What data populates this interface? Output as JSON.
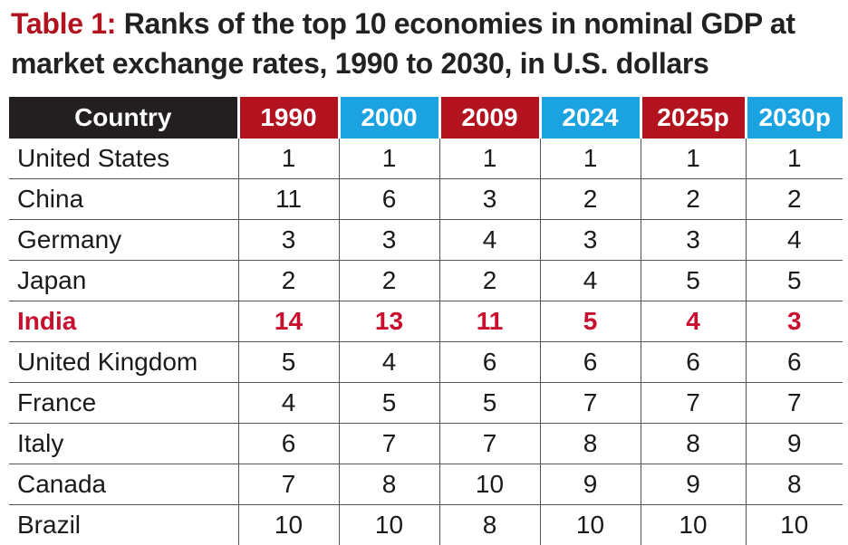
{
  "title": {
    "lead": "Table 1:",
    "text": " Ranks of the top 10 economies in nominal GDP at market exchange rates, 1990 to 2030, in U.S. dollars"
  },
  "colors": {
    "header_dark": "#231f20",
    "header_red": "#b3121f",
    "header_blue": "#1aa3e0",
    "highlight_text": "#c8102e"
  },
  "table": {
    "headers": [
      "Country",
      "1990",
      "2000",
      "2009",
      "2024",
      "2025p",
      "2030p"
    ],
    "rows": [
      {
        "country": "United States",
        "ranks": [
          "1",
          "1",
          "1",
          "1",
          "1",
          "1"
        ]
      },
      {
        "country": "China",
        "ranks": [
          "11",
          "6",
          "3",
          "2",
          "2",
          "2"
        ]
      },
      {
        "country": "Germany",
        "ranks": [
          "3",
          "3",
          "4",
          "3",
          "3",
          "4"
        ]
      },
      {
        "country": "Japan",
        "ranks": [
          "2",
          "2",
          "2",
          "4",
          "5",
          "5"
        ]
      },
      {
        "country": "India",
        "ranks": [
          "14",
          "13",
          "11",
          "5",
          "4",
          "3"
        ]
      },
      {
        "country": "United Kingdom",
        "ranks": [
          "5",
          "4",
          "6",
          "6",
          "6",
          "6"
        ]
      },
      {
        "country": "France",
        "ranks": [
          "4",
          "5",
          "5",
          "7",
          "7",
          "7"
        ]
      },
      {
        "country": "Italy",
        "ranks": [
          "6",
          "7",
          "7",
          "8",
          "8",
          "9"
        ]
      },
      {
        "country": "Canada",
        "ranks": [
          "7",
          "8",
          "10",
          "9",
          "9",
          "8"
        ]
      },
      {
        "country": "Brazil",
        "ranks": [
          "10",
          "10",
          "8",
          "10",
          "10",
          "10"
        ]
      }
    ]
  }
}
